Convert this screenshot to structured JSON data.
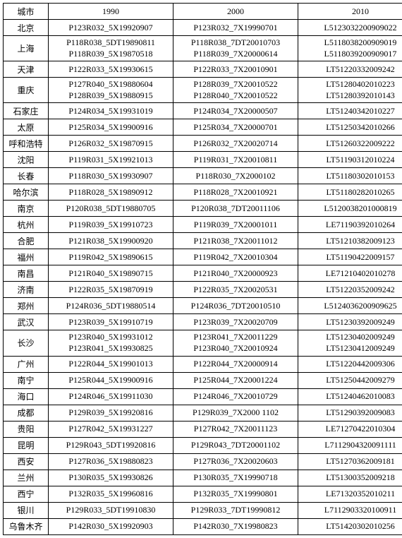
{
  "columns": [
    "城市",
    "1990",
    "2000",
    "2010"
  ],
  "rows": [
    {
      "city": "北京",
      "v1990": [
        "P123R032_5X19920907"
      ],
      "v2000": [
        "P123R032_7X19990701"
      ],
      "v2010": [
        "L5123032200909022"
      ]
    },
    {
      "city": "上海",
      "v1990": [
        "P118R038_5DT19890811",
        "P118R039_5X19870518"
      ],
      "v2000": [
        "P118R038_7DT20010703",
        "P118R039_7X20000614"
      ],
      "v2010": [
        "L5118038200909019",
        "L5118039200909017"
      ]
    },
    {
      "city": "天津",
      "v1990": [
        "P122R033_5X19930615"
      ],
      "v2000": [
        "P122R033_7X20010901"
      ],
      "v2010": [
        "LT51220332009242"
      ]
    },
    {
      "city": "重庆",
      "v1990": [
        "P127R040_5X19880604",
        "P128R039_5X19880915"
      ],
      "v2000": [
        "P128R039_7X20010522",
        "P128R040_7X20010522"
      ],
      "v2010": [
        "LT51280402010223",
        "LT51280392010143"
      ]
    },
    {
      "city": "石家庄",
      "v1990": [
        "P124R034_5X19931019"
      ],
      "v2000": [
        "P124R034_7X20000507"
      ],
      "v2010": [
        "LT51240342010227"
      ]
    },
    {
      "city": "太原",
      "v1990": [
        "P125R034_5X19900916"
      ],
      "v2000": [
        "P125R034_7X20000701"
      ],
      "v2010": [
        "LT51250342010266"
      ]
    },
    {
      "city": "呼和浩特",
      "v1990": [
        "P126R032_5X19870915"
      ],
      "v2000": [
        "P126R032_7X20020714"
      ],
      "v2010": [
        "LT51260322009222"
      ]
    },
    {
      "city": "沈阳",
      "v1990": [
        "P119R031_5X19921013"
      ],
      "v2000": [
        "P119R031_7X20010811"
      ],
      "v2010": [
        "LT51190312010224"
      ]
    },
    {
      "city": "长春",
      "v1990": [
        "P118R030_5X19930907"
      ],
      "v2000": [
        "P118R030_7X2000102"
      ],
      "v2010": [
        "LT51180302010153"
      ]
    },
    {
      "city": "哈尔滨",
      "v1990": [
        "P118R028_5X19890912"
      ],
      "v2000": [
        "P118R028_7X20010921"
      ],
      "v2010": [
        "LT51180282010265"
      ]
    },
    {
      "city": "南京",
      "v1990": [
        "P120R038_5DT19880705"
      ],
      "v2000": [
        "P120R038_7DT20011106"
      ],
      "v2010": [
        "L5120038201000819"
      ]
    },
    {
      "city": "杭州",
      "v1990": [
        "P119R039_5X19910723"
      ],
      "v2000": [
        "P119R039_7X20001011"
      ],
      "v2010": [
        "LE71190392010264"
      ]
    },
    {
      "city": "合肥",
      "v1990": [
        "P121R038_5X19900920"
      ],
      "v2000": [
        "P121R038_7X20011012"
      ],
      "v2010": [
        "LT51210382009123"
      ]
    },
    {
      "city": "福州",
      "v1990": [
        "P119R042_5X19890615"
      ],
      "v2000": [
        "P119R042_7X20010304"
      ],
      "v2010": [
        "LT51190422009157"
      ]
    },
    {
      "city": "南昌",
      "v1990": [
        "P121R040_5X19890715"
      ],
      "v2000": [
        "P121R040_7X20000923"
      ],
      "v2010": [
        "LE71210402010278"
      ]
    },
    {
      "city": "济南",
      "v1990": [
        "P122R035_5X19870919"
      ],
      "v2000": [
        "P122R035_7X20020531"
      ],
      "v2010": [
        "LT51220352009242"
      ]
    },
    {
      "city": "郑州",
      "v1990": [
        "P124R036_5DT19880514"
      ],
      "v2000": [
        "P124R036_7DT20010510"
      ],
      "v2010": [
        "L5124036200909625"
      ]
    },
    {
      "city": "武汉",
      "v1990": [
        "P123R039_5X19910719"
      ],
      "v2000": [
        "P123R039_7X20020709"
      ],
      "v2010": [
        "LT51230392009249"
      ]
    },
    {
      "city": "长沙",
      "v1990": [
        "P123R040_5X19931012",
        "P123R041_5X19930825"
      ],
      "v2000": [
        "P123R041_7X20011229",
        "P123R040_7X20010924"
      ],
      "v2010": [
        "LT51230402009249",
        "LT51230412009249"
      ]
    },
    {
      "city": "广州",
      "v1990": [
        "P122R044_5X19901013"
      ],
      "v2000": [
        "P122R044_7X20000914"
      ],
      "v2010": [
        "LT51220442009306"
      ]
    },
    {
      "city": "南宁",
      "v1990": [
        "P125R044_5X19900916"
      ],
      "v2000": [
        "P125R044_7X20001224"
      ],
      "v2010": [
        "LT51250442009279"
      ]
    },
    {
      "city": "海口",
      "v1990": [
        "P124R046_5X19911030"
      ],
      "v2000": [
        "P124R046_7X20010729"
      ],
      "v2010": [
        "LT51240462010083"
      ]
    },
    {
      "city": "成都",
      "v1990": [
        "P129R039_5X19920816"
      ],
      "v2000": [
        "P129R039_7X2000 1102"
      ],
      "v2010": [
        "LT51290392009083"
      ]
    },
    {
      "city": "贵阳",
      "v1990": [
        "P127R042_5X19931227"
      ],
      "v2000": [
        "P127R042_7X20011123"
      ],
      "v2010": [
        "LE71270422010304"
      ]
    },
    {
      "city": "昆明",
      "v1990": [
        "P129R043_5DT19920816"
      ],
      "v2000": [
        "P129R043_7DT20001102"
      ],
      "v2010": [
        "L7112904320091111"
      ]
    },
    {
      "city": "西安",
      "v1990": [
        "P127R036_5X19880823"
      ],
      "v2000": [
        "P127R036_7X20020603"
      ],
      "v2010": [
        "LT51270362009181"
      ]
    },
    {
      "city": "兰州",
      "v1990": [
        "P130R035_5X19930826"
      ],
      "v2000": [
        "P130R035_7X19990718"
      ],
      "v2010": [
        "LT51300352009218"
      ]
    },
    {
      "city": "西宁",
      "v1990": [
        "P132R035_5X19960816"
      ],
      "v2000": [
        "P132R035_7X19990801"
      ],
      "v2010": [
        "LE71320352010211"
      ]
    },
    {
      "city": "银川",
      "v1990": [
        "P129R033_5DT19910830"
      ],
      "v2000": [
        "P129R033_7DT19990812"
      ],
      "v2010": [
        "L7112903320100911"
      ]
    },
    {
      "city": "乌鲁木齐",
      "v1990": [
        "P142R030_5X19920903"
      ],
      "v2000": [
        "P142R030_7X19980823"
      ],
      "v2010": [
        "LT51420302010256"
      ]
    }
  ]
}
